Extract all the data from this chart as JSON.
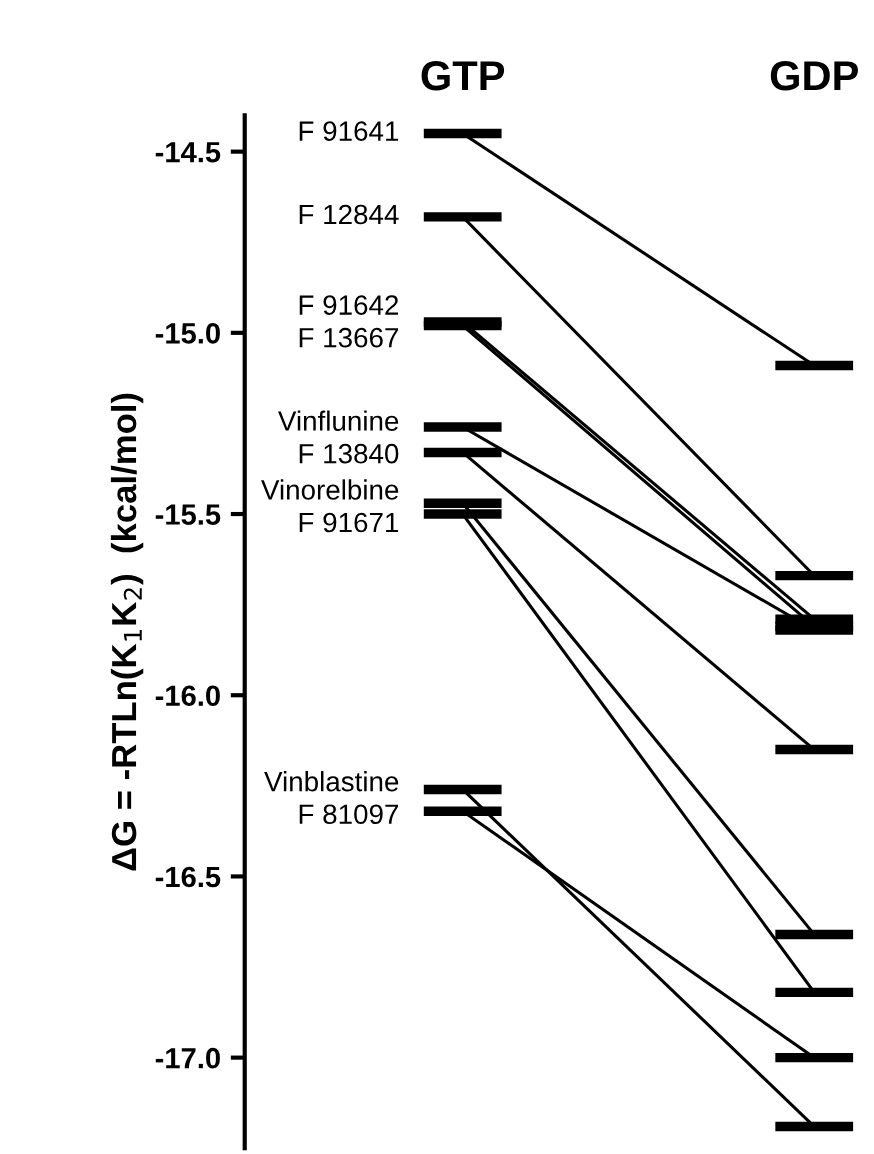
{
  "chart_data": {
    "type": "line",
    "ylabel": "ΔG = -RTLn(K$_{1}$K$_{2}$)  (kcal/mol)",
    "categories": [
      "GTP",
      "GDP"
    ],
    "ylim": [
      -17.25,
      -14.4
    ],
    "yticks": [
      -14.5,
      {
        "value": -15,
        "label": "-15.0"
      },
      -15.5,
      {
        "value": -16,
        "label": "-16.0"
      },
      -16.5,
      {
        "value": -17,
        "label": "-17.0"
      }
    ],
    "grid": false,
    "legend": "left",
    "line_style": "solid",
    "series": [
      {
        "name": "F 91641",
        "color": "#000000",
        "values": [
          -14.45,
          -15.09
        ]
      },
      {
        "name": "F 12844",
        "color": "#000000",
        "values": [
          -14.68,
          -15.67
        ]
      },
      {
        "name": "F 91642",
        "color": "#000000",
        "values": [
          -14.97,
          -15.79
        ]
      },
      {
        "name": "F 13667",
        "color": "#000000",
        "values": [
          -14.98,
          -15.81
        ]
      },
      {
        "name": "Vinflunine",
        "color": "#000000",
        "values": [
          -15.26,
          -15.82
        ]
      },
      {
        "name": "F 13840",
        "color": "#000000",
        "values": [
          -15.33,
          -16.15
        ]
      },
      {
        "name": "Vinorelbine",
        "color": "#000000",
        "values": [
          -15.47,
          -16.66
        ]
      },
      {
        "name": "F 91671",
        "color": "#000000",
        "values": [
          -15.5,
          -16.82
        ]
      },
      {
        "name": "Vinblastine",
        "color": "#000000",
        "values": [
          -16.26,
          -17.19
        ]
      },
      {
        "name": "F 81097",
        "color": "#000000",
        "values": [
          -16.32,
          -17.0
        ]
      }
    ]
  }
}
